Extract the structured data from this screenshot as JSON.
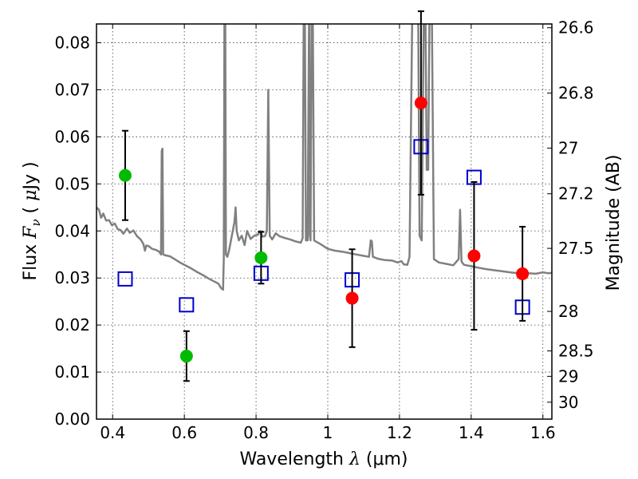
{
  "chart_data": {
    "type": "scatter",
    "xlabel": "Wavelength  λ (μm)",
    "xlabel_main": "Wavelength  ",
    "xlabel_lambda": "λ",
    "xlabel_unit": " (μm)",
    "ylabel": "Flux  Fν  ( μJy )",
    "ylabel_main": "Flux  ",
    "ylabel_F": "F",
    "ylabel_nu": "ν",
    "ylabel_open": "  ( ",
    "ylabel_mu": "μ",
    "ylabel_close": "Jy )",
    "y2label": "Magnitude (AB)",
    "xlim": [
      0.355,
      1.625
    ],
    "ylim": [
      0.0,
      0.084
    ],
    "grid": true,
    "x_ticks": [
      {
        "v": 0.4,
        "label": "0.4"
      },
      {
        "v": 0.6,
        "label": "0.6"
      },
      {
        "v": 0.8,
        "label": "0.8"
      },
      {
        "v": 1.0,
        "label": "1"
      },
      {
        "v": 1.2,
        "label": "1.2"
      },
      {
        "v": 1.4,
        "label": "1.4"
      },
      {
        "v": 1.6,
        "label": "1.6"
      }
    ],
    "y_ticks": [
      {
        "v": 0.0,
        "label": "0.00"
      },
      {
        "v": 0.01,
        "label": "0.01"
      },
      {
        "v": 0.02,
        "label": "0.02"
      },
      {
        "v": 0.03,
        "label": "0.03"
      },
      {
        "v": 0.04,
        "label": "0.04"
      },
      {
        "v": 0.05,
        "label": "0.05"
      },
      {
        "v": 0.06,
        "label": "0.06"
      },
      {
        "v": 0.07,
        "label": "0.07"
      },
      {
        "v": 0.08,
        "label": "0.08"
      }
    ],
    "y2_ticks": [
      {
        "label": "26.6",
        "flux": 0.0832
      },
      {
        "label": "26.8",
        "flux": 0.0693
      },
      {
        "label": "27",
        "flux": 0.0576
      },
      {
        "label": "27.2",
        "flux": 0.0479
      },
      {
        "label": "27.5",
        "flux": 0.0363
      },
      {
        "label": "28",
        "flux": 0.0229
      },
      {
        "label": "28.5",
        "flux": 0.0145
      },
      {
        "label": "29",
        "flux": 0.0091
      },
      {
        "label": "30",
        "flux": 0.0036
      }
    ],
    "series": [
      {
        "style": "filled-circle",
        "color": "#00bb00",
        "points": [
          {
            "x": 0.435,
            "y": 0.0518,
            "err": 0.0095
          },
          {
            "x": 0.606,
            "y": 0.0134,
            "err": 0.0053
          },
          {
            "x": 0.814,
            "y": 0.0343,
            "err": 0.0055
          }
        ]
      },
      {
        "style": "filled-circle",
        "color": "#ff0000",
        "points": [
          {
            "x": 1.068,
            "y": 0.0257,
            "err": 0.0104
          },
          {
            "x": 1.26,
            "y": 0.0672,
            "err": 0.0195
          },
          {
            "x": 1.408,
            "y": 0.0347,
            "err": 0.0157
          },
          {
            "x": 1.543,
            "y": 0.0309,
            "err": 0.01
          }
        ]
      },
      {
        "style": "open-square",
        "color": "#0000cc",
        "points": [
          {
            "x": 0.435,
            "y": 0.0298
          },
          {
            "x": 0.606,
            "y": 0.0243
          },
          {
            "x": 0.814,
            "y": 0.031
          },
          {
            "x": 1.068,
            "y": 0.0296
          },
          {
            "x": 1.26,
            "y": 0.0579
          },
          {
            "x": 1.408,
            "y": 0.0514
          },
          {
            "x": 1.543,
            "y": 0.0238
          }
        ]
      },
      {
        "style": "line",
        "color": "#808080",
        "points": [
          [
            0.355,
            0.045
          ],
          [
            0.362,
            0.0445
          ],
          [
            0.368,
            0.0428
          ],
          [
            0.374,
            0.0437
          ],
          [
            0.382,
            0.0422
          ],
          [
            0.39,
            0.0423
          ],
          [
            0.398,
            0.0412
          ],
          [
            0.406,
            0.0416
          ],
          [
            0.414,
            0.0404
          ],
          [
            0.422,
            0.0402
          ],
          [
            0.43,
            0.0394
          ],
          [
            0.44,
            0.0405
          ],
          [
            0.448,
            0.0396
          ],
          [
            0.458,
            0.0401
          ],
          [
            0.468,
            0.0389
          ],
          [
            0.478,
            0.0382
          ],
          [
            0.486,
            0.0372
          ],
          [
            0.49,
            0.0358
          ],
          [
            0.494,
            0.0369
          ],
          [
            0.5,
            0.0368
          ],
          [
            0.51,
            0.0362
          ],
          [
            0.52,
            0.036
          ],
          [
            0.53,
            0.0356
          ],
          [
            0.535,
            0.035
          ],
          [
            0.537,
            0.057
          ],
          [
            0.539,
            0.0575
          ],
          [
            0.541,
            0.035
          ],
          [
            0.548,
            0.0348
          ],
          [
            0.56,
            0.0346
          ],
          [
            0.575,
            0.0339
          ],
          [
            0.59,
            0.0332
          ],
          [
            0.605,
            0.0326
          ],
          [
            0.62,
            0.032
          ],
          [
            0.635,
            0.0313
          ],
          [
            0.65,
            0.0307
          ],
          [
            0.665,
            0.03
          ],
          [
            0.68,
            0.0294
          ],
          [
            0.695,
            0.0288
          ],
          [
            0.702,
            0.0279
          ],
          [
            0.708,
            0.0275
          ],
          [
            0.71,
            0.034
          ],
          [
            0.712,
            0.089
          ],
          [
            0.714,
            0.089
          ],
          [
            0.716,
            0.035
          ],
          [
            0.72,
            0.0345
          ],
          [
            0.725,
            0.036
          ],
          [
            0.73,
            0.038
          ],
          [
            0.735,
            0.04
          ],
          [
            0.74,
            0.042
          ],
          [
            0.743,
            0.045
          ],
          [
            0.746,
            0.04
          ],
          [
            0.752,
            0.038
          ],
          [
            0.76,
            0.039
          ],
          [
            0.768,
            0.037
          ],
          [
            0.775,
            0.04
          ],
          [
            0.785,
            0.0383
          ],
          [
            0.795,
            0.039
          ],
          [
            0.805,
            0.0392
          ],
          [
            0.812,
            0.04
          ],
          [
            0.818,
            0.0388
          ],
          [
            0.825,
            0.0389
          ],
          [
            0.83,
            0.04
          ],
          [
            0.834,
            0.07
          ],
          [
            0.838,
            0.039
          ],
          [
            0.845,
            0.0382
          ],
          [
            0.855,
            0.0395
          ],
          [
            0.865,
            0.0389
          ],
          [
            0.88,
            0.0385
          ],
          [
            0.895,
            0.0382
          ],
          [
            0.91,
            0.0378
          ],
          [
            0.925,
            0.0375
          ],
          [
            0.93,
            0.0385
          ],
          [
            0.933,
            0.089
          ],
          [
            0.936,
            0.089
          ],
          [
            0.939,
            0.038
          ],
          [
            0.944,
            0.038
          ],
          [
            0.948,
            0.089
          ],
          [
            0.95,
            0.039
          ],
          [
            0.952,
            0.038
          ],
          [
            0.955,
            0.089
          ],
          [
            0.958,
            0.089
          ],
          [
            0.962,
            0.038
          ],
          [
            0.966,
            0.0378
          ],
          [
            0.98,
            0.0372
          ],
          [
            1.0,
            0.0362
          ],
          [
            1.02,
            0.0358
          ],
          [
            1.04,
            0.0356
          ],
          [
            1.06,
            0.0353
          ],
          [
            1.08,
            0.035
          ],
          [
            1.1,
            0.0347
          ],
          [
            1.115,
            0.0345
          ],
          [
            1.12,
            0.038
          ],
          [
            1.123,
            0.0378
          ],
          [
            1.126,
            0.0345
          ],
          [
            1.14,
            0.0341
          ],
          [
            1.16,
            0.0338
          ],
          [
            1.18,
            0.0337
          ],
          [
            1.195,
            0.0333
          ],
          [
            1.205,
            0.0336
          ],
          [
            1.212,
            0.0329
          ],
          [
            1.222,
            0.0328
          ],
          [
            1.228,
            0.0345
          ],
          [
            1.236,
            0.089
          ],
          [
            1.244,
            0.089
          ],
          [
            1.252,
            0.089
          ],
          [
            1.256,
            0.039
          ],
          [
            1.262,
            0.038
          ],
          [
            1.268,
            0.089
          ],
          [
            1.272,
            0.089
          ],
          [
            1.276,
            0.053
          ],
          [
            1.28,
            0.053
          ],
          [
            1.284,
            0.089
          ],
          [
            1.29,
            0.089
          ],
          [
            1.296,
            0.034
          ],
          [
            1.31,
            0.0333
          ],
          [
            1.33,
            0.033
          ],
          [
            1.35,
            0.0327
          ],
          [
            1.365,
            0.034
          ],
          [
            1.369,
            0.0445
          ],
          [
            1.373,
            0.0335
          ],
          [
            1.38,
            0.0328
          ],
          [
            1.4,
            0.0325
          ],
          [
            1.42,
            0.0322
          ],
          [
            1.44,
            0.0319
          ],
          [
            1.46,
            0.0317
          ],
          [
            1.48,
            0.0315
          ],
          [
            1.5,
            0.0313
          ],
          [
            1.52,
            0.0311
          ],
          [
            1.54,
            0.031
          ],
          [
            1.56,
            0.031
          ],
          [
            1.58,
            0.0309
          ],
          [
            1.6,
            0.0312
          ],
          [
            1.615,
            0.031
          ],
          [
            1.625,
            0.0311
          ]
        ]
      }
    ]
  }
}
